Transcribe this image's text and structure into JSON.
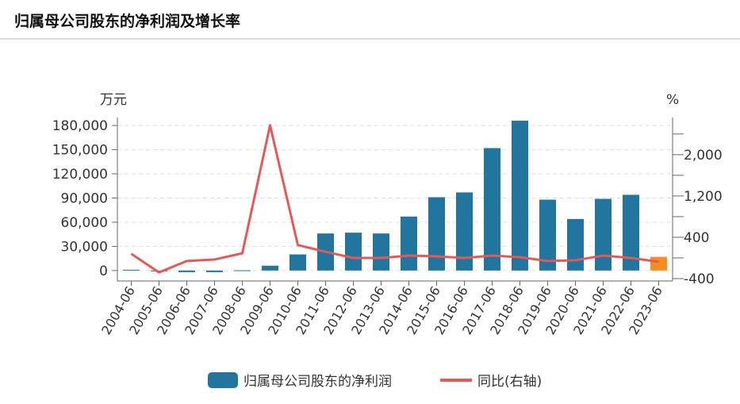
{
  "header": {
    "title": "归属母公司股东的净利润及增长率"
  },
  "chart_data": {
    "type": "bar+line",
    "title": "归属母公司股东的净利润及增长率",
    "left_unit": "万元",
    "right_unit": "%",
    "categories": [
      "2004-06",
      "2005-06",
      "2006-06",
      "2007-06",
      "2008-06",
      "2009-06",
      "2010-06",
      "2011-06",
      "2012-06",
      "2013-06",
      "2014-06",
      "2015-06",
      "2016-06",
      "2017-06",
      "2018-06",
      "2019-06",
      "2020-06",
      "2021-06",
      "2022-06",
      "2023-06"
    ],
    "series": [
      {
        "name": "归属母公司股东的净利润",
        "type": "bar",
        "axis": "left",
        "color": "#21759f",
        "highlight_color": "#f68b1f",
        "values": [
          1000,
          -1000,
          -2000,
          -2000,
          300,
          6000,
          20000,
          46000,
          47000,
          46000,
          67000,
          91000,
          97000,
          152000,
          186000,
          88000,
          64000,
          89000,
          94000,
          17000
        ]
      },
      {
        "name": "同比(右轴)",
        "type": "line",
        "axis": "right",
        "color": "#e05a5a",
        "values": [
          80,
          -280,
          -60,
          -30,
          90,
          2570,
          250,
          120,
          0,
          0,
          45,
          30,
          0,
          45,
          15,
          -60,
          -45,
          45,
          0,
          -75
        ]
      }
    ],
    "left_ticks": [
      "0",
      "30,000",
      "60,000",
      "90,000",
      "120,000",
      "150,000",
      "180,000"
    ],
    "left_tick_values": [
      0,
      30000,
      60000,
      90000,
      120000,
      150000,
      180000
    ],
    "left_range": [
      -10000,
      190000
    ],
    "right_ticks": [
      "-400",
      "400",
      "1,200",
      "2,000"
    ],
    "right_tick_values": [
      -400,
      400,
      1200,
      2000
    ],
    "right_minor_values": [
      0,
      800,
      1600,
      2400
    ],
    "right_range": [
      -400,
      2720
    ],
    "legend": {
      "position": "bottom",
      "bar_label": "归属母公司股东的净利润",
      "line_label": "同比(右轴)"
    }
  }
}
